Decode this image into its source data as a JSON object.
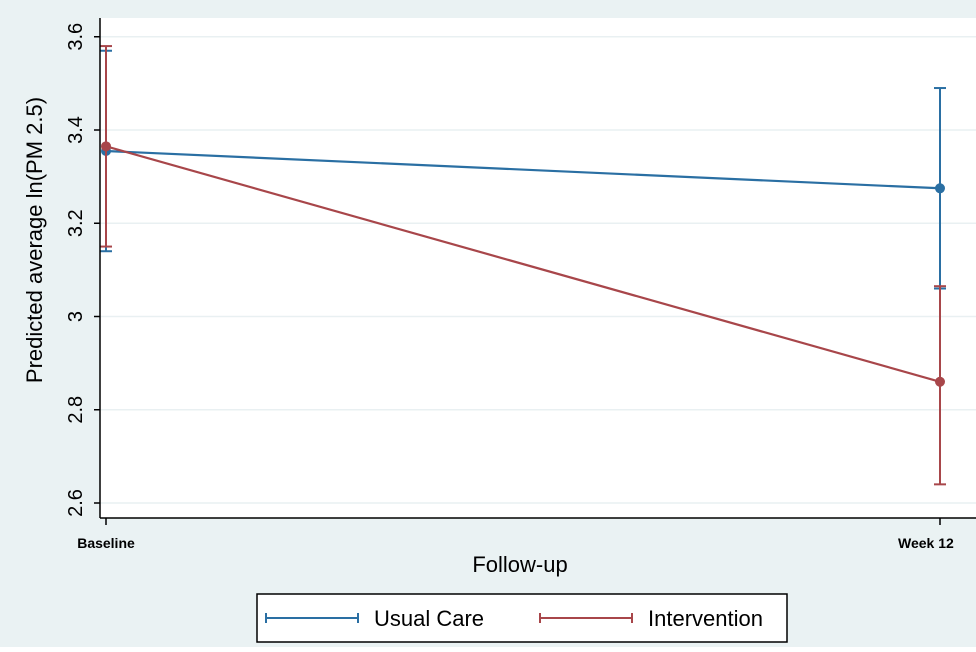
{
  "chart_data": {
    "type": "line",
    "title": "",
    "xlabel": "Follow-up",
    "ylabel": "Predicted average ln(PM 2.5)",
    "categories": [
      "Baseline",
      "Week 12"
    ],
    "ylim": [
      2.58,
      3.62
    ],
    "yticks": [
      2.6,
      2.8,
      3,
      3.2,
      3.4,
      3.6
    ],
    "ytick_labels": [
      "2.6",
      "2.8",
      "3",
      "3.2",
      "3.4",
      "3.6"
    ],
    "grid": true,
    "legend_position": "bottom",
    "series": [
      {
        "name": "Usual Care",
        "color": "#2a6fa3",
        "values": [
          3.355,
          3.275
        ],
        "ci_lower": [
          3.14,
          3.06
        ],
        "ci_upper": [
          3.57,
          3.49
        ]
      },
      {
        "name": "Intervention",
        "color": "#a8464a",
        "values": [
          3.365,
          2.86
        ],
        "ci_lower": [
          3.15,
          2.64
        ],
        "ci_upper": [
          3.58,
          3.065
        ]
      }
    ]
  },
  "colors": {
    "outer_background": "#eaf2f3",
    "plot_background": "#ffffff",
    "gridline": "#e9f0f2",
    "axis": "#000000"
  }
}
